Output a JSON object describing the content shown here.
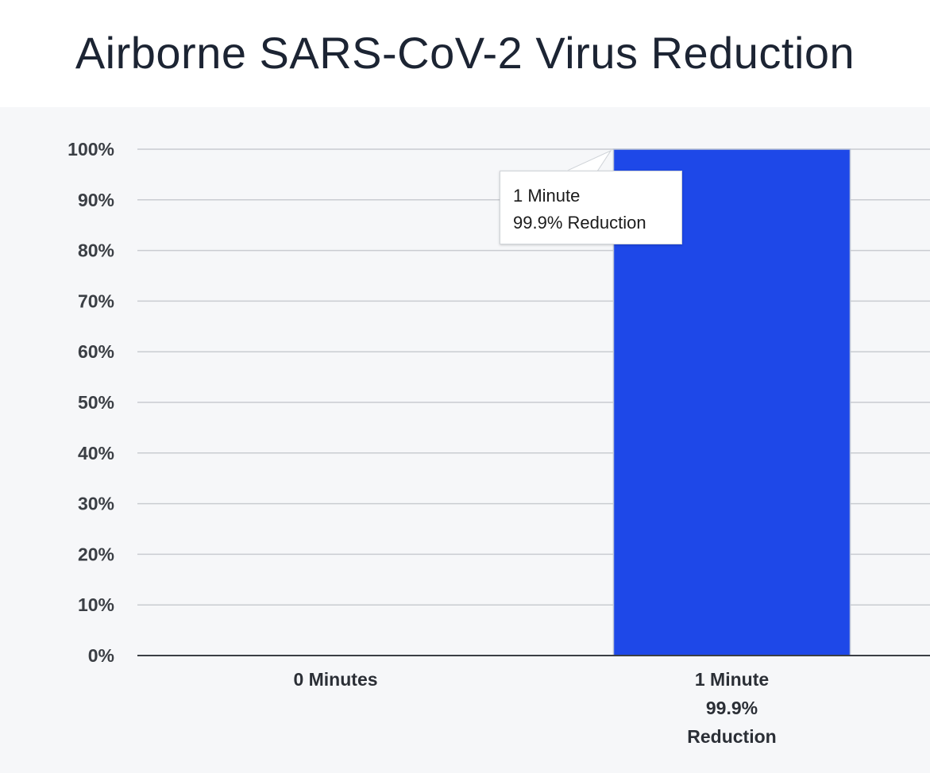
{
  "chart_data": {
    "type": "bar",
    "title": "Airborne SARS-CoV-2 Virus Reduction",
    "xlabel": "",
    "ylabel": "",
    "categories": [
      [
        "0 Minutes"
      ],
      [
        "1 Minute",
        "99.9%",
        "Reduction"
      ]
    ],
    "values": [
      0,
      100
    ],
    "ylim": [
      0,
      100
    ],
    "yticks": [
      "0%",
      "10%",
      "20%",
      "30%",
      "40%",
      "50%",
      "60%",
      "70%",
      "80%",
      "90%",
      "100%"
    ],
    "grid": true,
    "bar_color": "#1e48e8",
    "tooltip": {
      "line1": "1 Minute",
      "line2": "99.9% Reduction"
    }
  }
}
